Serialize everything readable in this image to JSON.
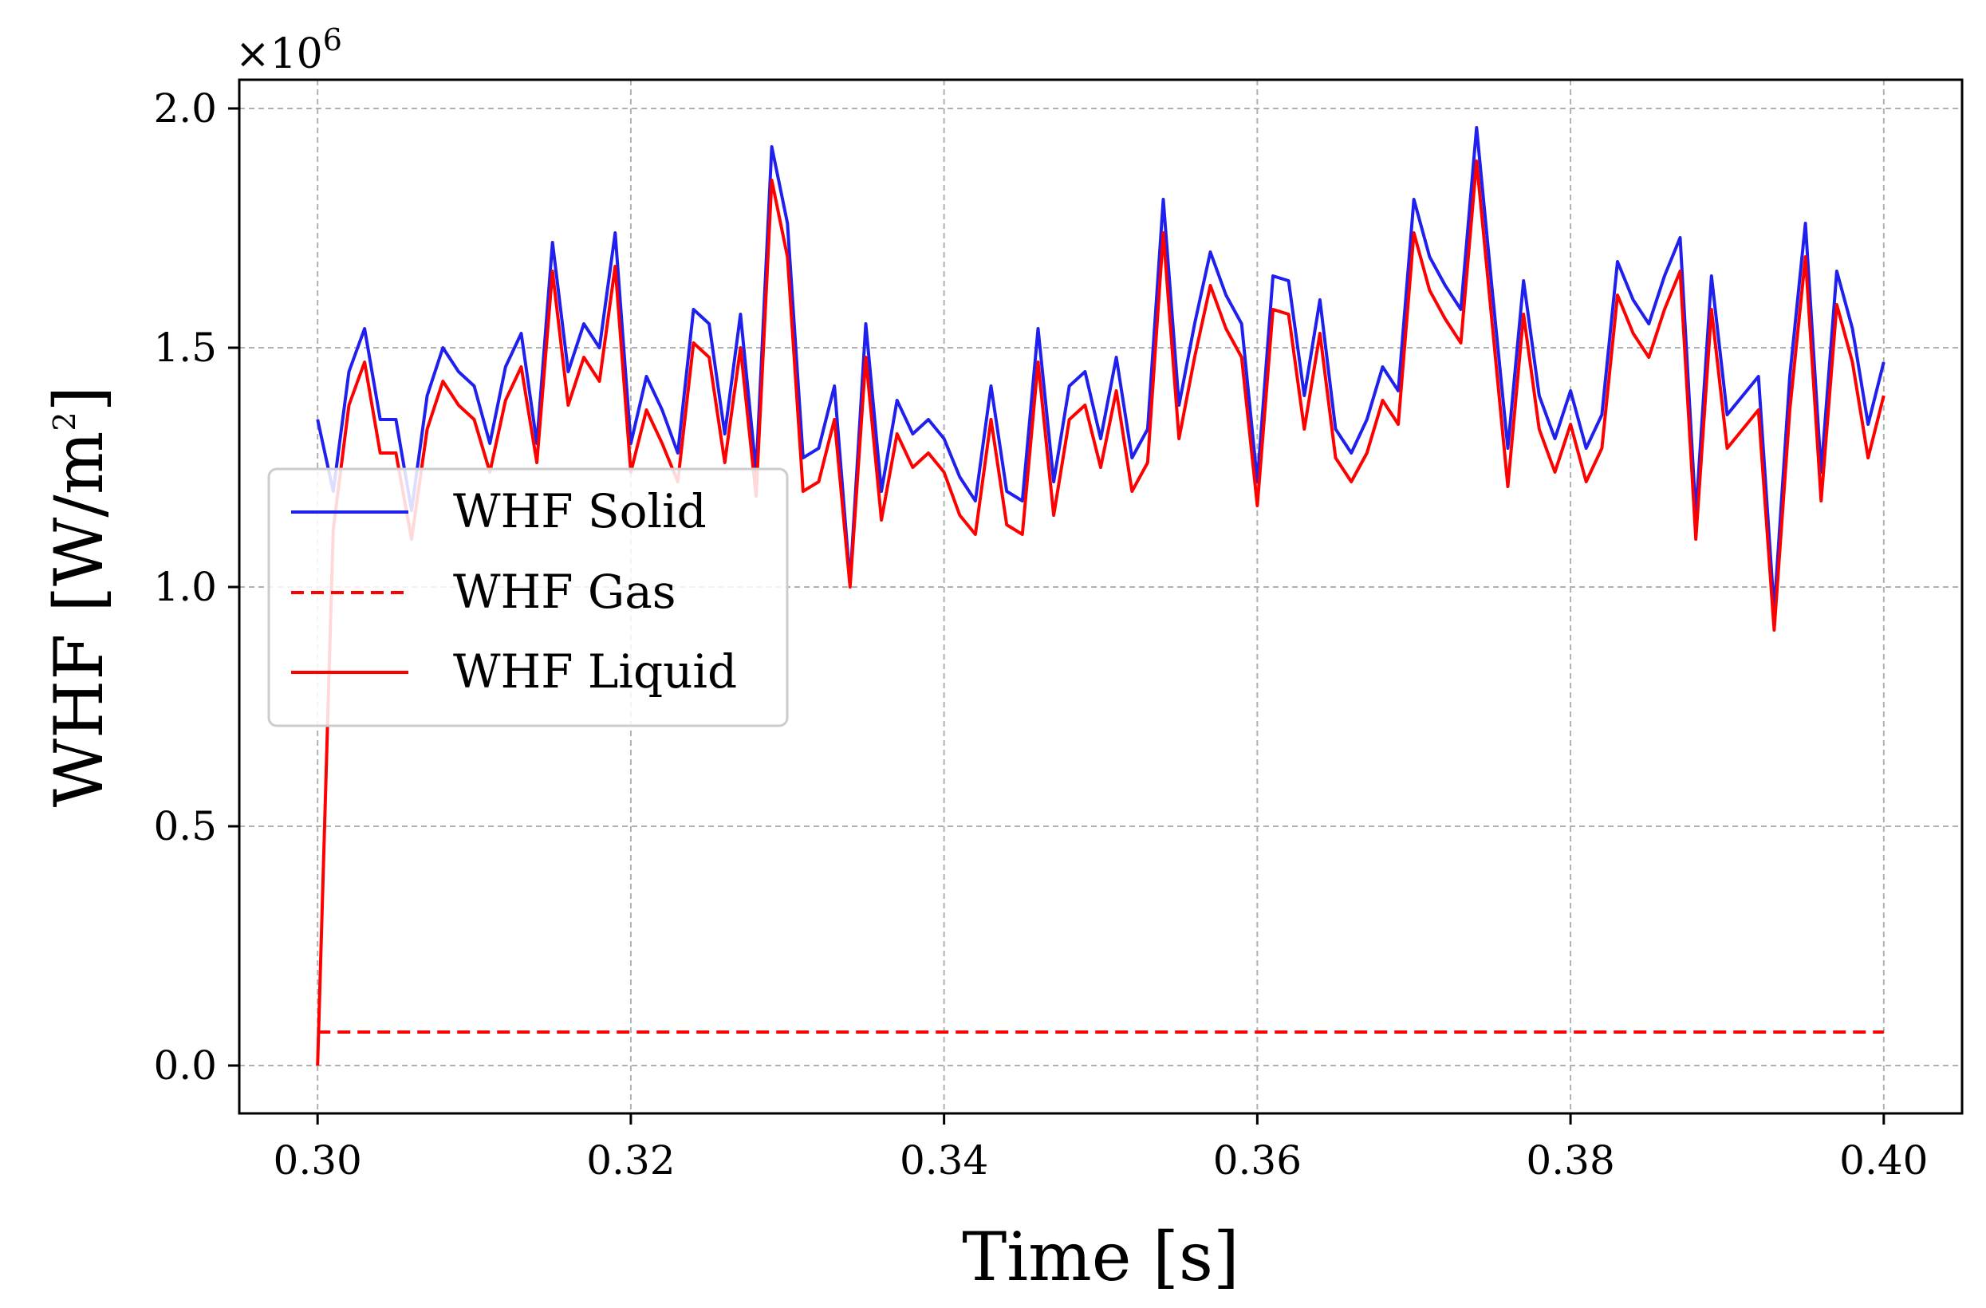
{
  "chart_data": {
    "type": "line",
    "title": "",
    "xlabel": "Time [s]",
    "ylabel": {
      "main": "WHF [W/m",
      "sup": "2",
      "close": "]"
    },
    "y_offset": {
      "main": "×10",
      "sup": "6"
    },
    "xlim": [
      0.295,
      0.405
    ],
    "ylim": [
      -0.1,
      2.06
    ],
    "x_ticks": [
      {
        "value": 0.3,
        "label": "0.30"
      },
      {
        "value": 0.32,
        "label": "0.32"
      },
      {
        "value": 0.34,
        "label": "0.34"
      },
      {
        "value": 0.36,
        "label": "0.36"
      },
      {
        "value": 0.38,
        "label": "0.38"
      },
      {
        "value": 0.4,
        "label": "0.40"
      }
    ],
    "y_ticks": [
      {
        "value": 0.0,
        "label": "0.0"
      },
      {
        "value": 0.5,
        "label": "0.5"
      },
      {
        "value": 1.0,
        "label": "1.0"
      },
      {
        "value": 1.5,
        "label": "1.5"
      },
      {
        "value": 2.0,
        "label": "2.0"
      }
    ],
    "grid": true,
    "legend_position": "center-left",
    "x_start": 0.3,
    "x_step": 0.001,
    "series": [
      {
        "name": "WHF Solid",
        "color": "#2020ee",
        "dash": "solid",
        "values": [
          1.35,
          1.2,
          1.45,
          1.54,
          1.35,
          1.35,
          1.16,
          1.4,
          1.5,
          1.45,
          1.42,
          1.3,
          1.46,
          1.53,
          1.3,
          1.72,
          1.45,
          1.55,
          1.5,
          1.74,
          1.3,
          1.44,
          1.37,
          1.28,
          1.58,
          1.55,
          1.32,
          1.57,
          1.24,
          1.92,
          1.76,
          1.27,
          1.29,
          1.42,
          1.01,
          1.55,
          1.2,
          1.39,
          1.32,
          1.35,
          1.31,
          1.23,
          1.18,
          1.42,
          1.2,
          1.18,
          1.54,
          1.22,
          1.42,
          1.45,
          1.31,
          1.48,
          1.27,
          1.33,
          1.81,
          1.38,
          1.55,
          1.7,
          1.61,
          1.55,
          1.22,
          1.65,
          1.64,
          1.4,
          1.6,
          1.33,
          1.28,
          1.35,
          1.46,
          1.41,
          1.81,
          1.69,
          1.63,
          1.58,
          1.96,
          1.62,
          1.29,
          1.64,
          1.4,
          1.31,
          1.41,
          1.29,
          1.36,
          1.68,
          1.6,
          1.55,
          1.65,
          1.73,
          1.15,
          1.65,
          1.36,
          1.4,
          1.44,
          0.95,
          1.44,
          1.76,
          1.24,
          1.66,
          1.54,
          1.34,
          1.47
        ]
      },
      {
        "name": "WHF Gas",
        "color": "#ff0000",
        "dash": "dashed",
        "values": [
          0.07,
          0.07,
          0.07,
          0.07,
          0.07,
          0.07,
          0.07,
          0.07,
          0.07,
          0.07,
          0.07,
          0.07,
          0.07,
          0.07,
          0.07,
          0.07,
          0.07,
          0.07,
          0.07,
          0.07,
          0.07,
          0.07,
          0.07,
          0.07,
          0.07,
          0.07,
          0.07,
          0.07,
          0.07,
          0.07,
          0.07,
          0.07,
          0.07,
          0.07,
          0.07,
          0.07,
          0.07,
          0.07,
          0.07,
          0.07,
          0.07,
          0.07,
          0.07,
          0.07,
          0.07,
          0.07,
          0.07,
          0.07,
          0.07,
          0.07,
          0.07,
          0.07,
          0.07,
          0.07,
          0.07,
          0.07,
          0.07,
          0.07,
          0.07,
          0.07,
          0.07,
          0.07,
          0.07,
          0.07,
          0.07,
          0.07,
          0.07,
          0.07,
          0.07,
          0.07,
          0.07,
          0.07,
          0.07,
          0.07,
          0.07,
          0.07,
          0.07,
          0.07,
          0.07,
          0.07,
          0.07,
          0.07,
          0.07,
          0.07,
          0.07,
          0.07,
          0.07,
          0.07,
          0.07,
          0.07,
          0.07,
          0.07,
          0.07,
          0.07,
          0.07,
          0.07,
          0.07,
          0.07,
          0.07,
          0.07,
          0.07
        ]
      },
      {
        "name": "WHF Liquid",
        "color": "#ff0000",
        "dash": "solid",
        "values": [
          0.0,
          1.12,
          1.38,
          1.47,
          1.28,
          1.28,
          1.1,
          1.33,
          1.43,
          1.38,
          1.35,
          1.24,
          1.39,
          1.46,
          1.26,
          1.66,
          1.38,
          1.48,
          1.43,
          1.67,
          1.24,
          1.37,
          1.3,
          1.22,
          1.51,
          1.48,
          1.26,
          1.5,
          1.19,
          1.85,
          1.69,
          1.2,
          1.22,
          1.35,
          1.0,
          1.48,
          1.14,
          1.32,
          1.25,
          1.28,
          1.24,
          1.15,
          1.11,
          1.35,
          1.13,
          1.11,
          1.47,
          1.15,
          1.35,
          1.38,
          1.25,
          1.41,
          1.2,
          1.26,
          1.74,
          1.31,
          1.48,
          1.63,
          1.54,
          1.48,
          1.17,
          1.58,
          1.57,
          1.33,
          1.53,
          1.27,
          1.22,
          1.28,
          1.39,
          1.34,
          1.74,
          1.62,
          1.56,
          1.51,
          1.89,
          1.55,
          1.21,
          1.57,
          1.33,
          1.24,
          1.34,
          1.22,
          1.29,
          1.61,
          1.53,
          1.48,
          1.58,
          1.66,
          1.1,
          1.58,
          1.29,
          1.33,
          1.37,
          0.91,
          1.37,
          1.69,
          1.18,
          1.59,
          1.47,
          1.27,
          1.4
        ]
      }
    ]
  }
}
